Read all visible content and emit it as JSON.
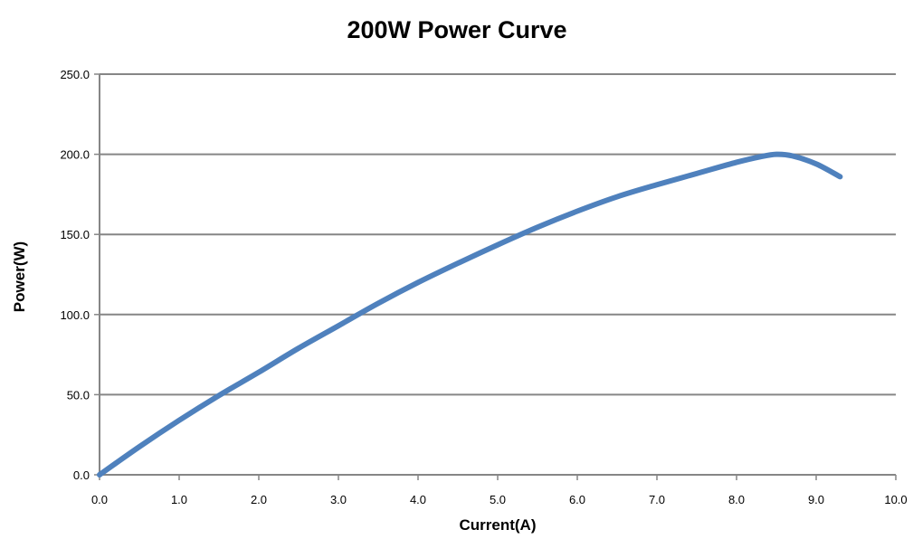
{
  "chart_data": {
    "type": "line",
    "title": "200W Power Curve",
    "xlabel": "Current(A)",
    "ylabel": "Power(W)",
    "xlim": [
      0,
      10
    ],
    "ylim": [
      0,
      250
    ],
    "x_ticks": [
      "0.0",
      "1.0",
      "2.0",
      "3.0",
      "4.0",
      "5.0",
      "6.0",
      "7.0",
      "8.0",
      "9.0",
      "10.0"
    ],
    "y_ticks": [
      "0.0",
      "50.0",
      "100.0",
      "150.0",
      "200.0",
      "250.0"
    ],
    "grid": "horizontal",
    "legend": "none",
    "series": [
      {
        "color": "#4F81BD",
        "x": [
          0.0,
          0.5,
          1.0,
          1.5,
          2.0,
          2.5,
          3.0,
          3.5,
          4.0,
          4.5,
          5.0,
          5.5,
          6.0,
          6.5,
          7.0,
          7.5,
          8.0,
          8.3,
          8.5,
          8.7,
          9.0,
          9.3
        ],
        "y": [
          0.0,
          17.5,
          34.0,
          49.5,
          64.0,
          79.0,
          93.0,
          107.0,
          120.0,
          132.0,
          143.5,
          154.5,
          164.5,
          173.5,
          181.0,
          188.0,
          195.0,
          198.5,
          200.0,
          199.0,
          194.0,
          186.0
        ]
      }
    ]
  }
}
